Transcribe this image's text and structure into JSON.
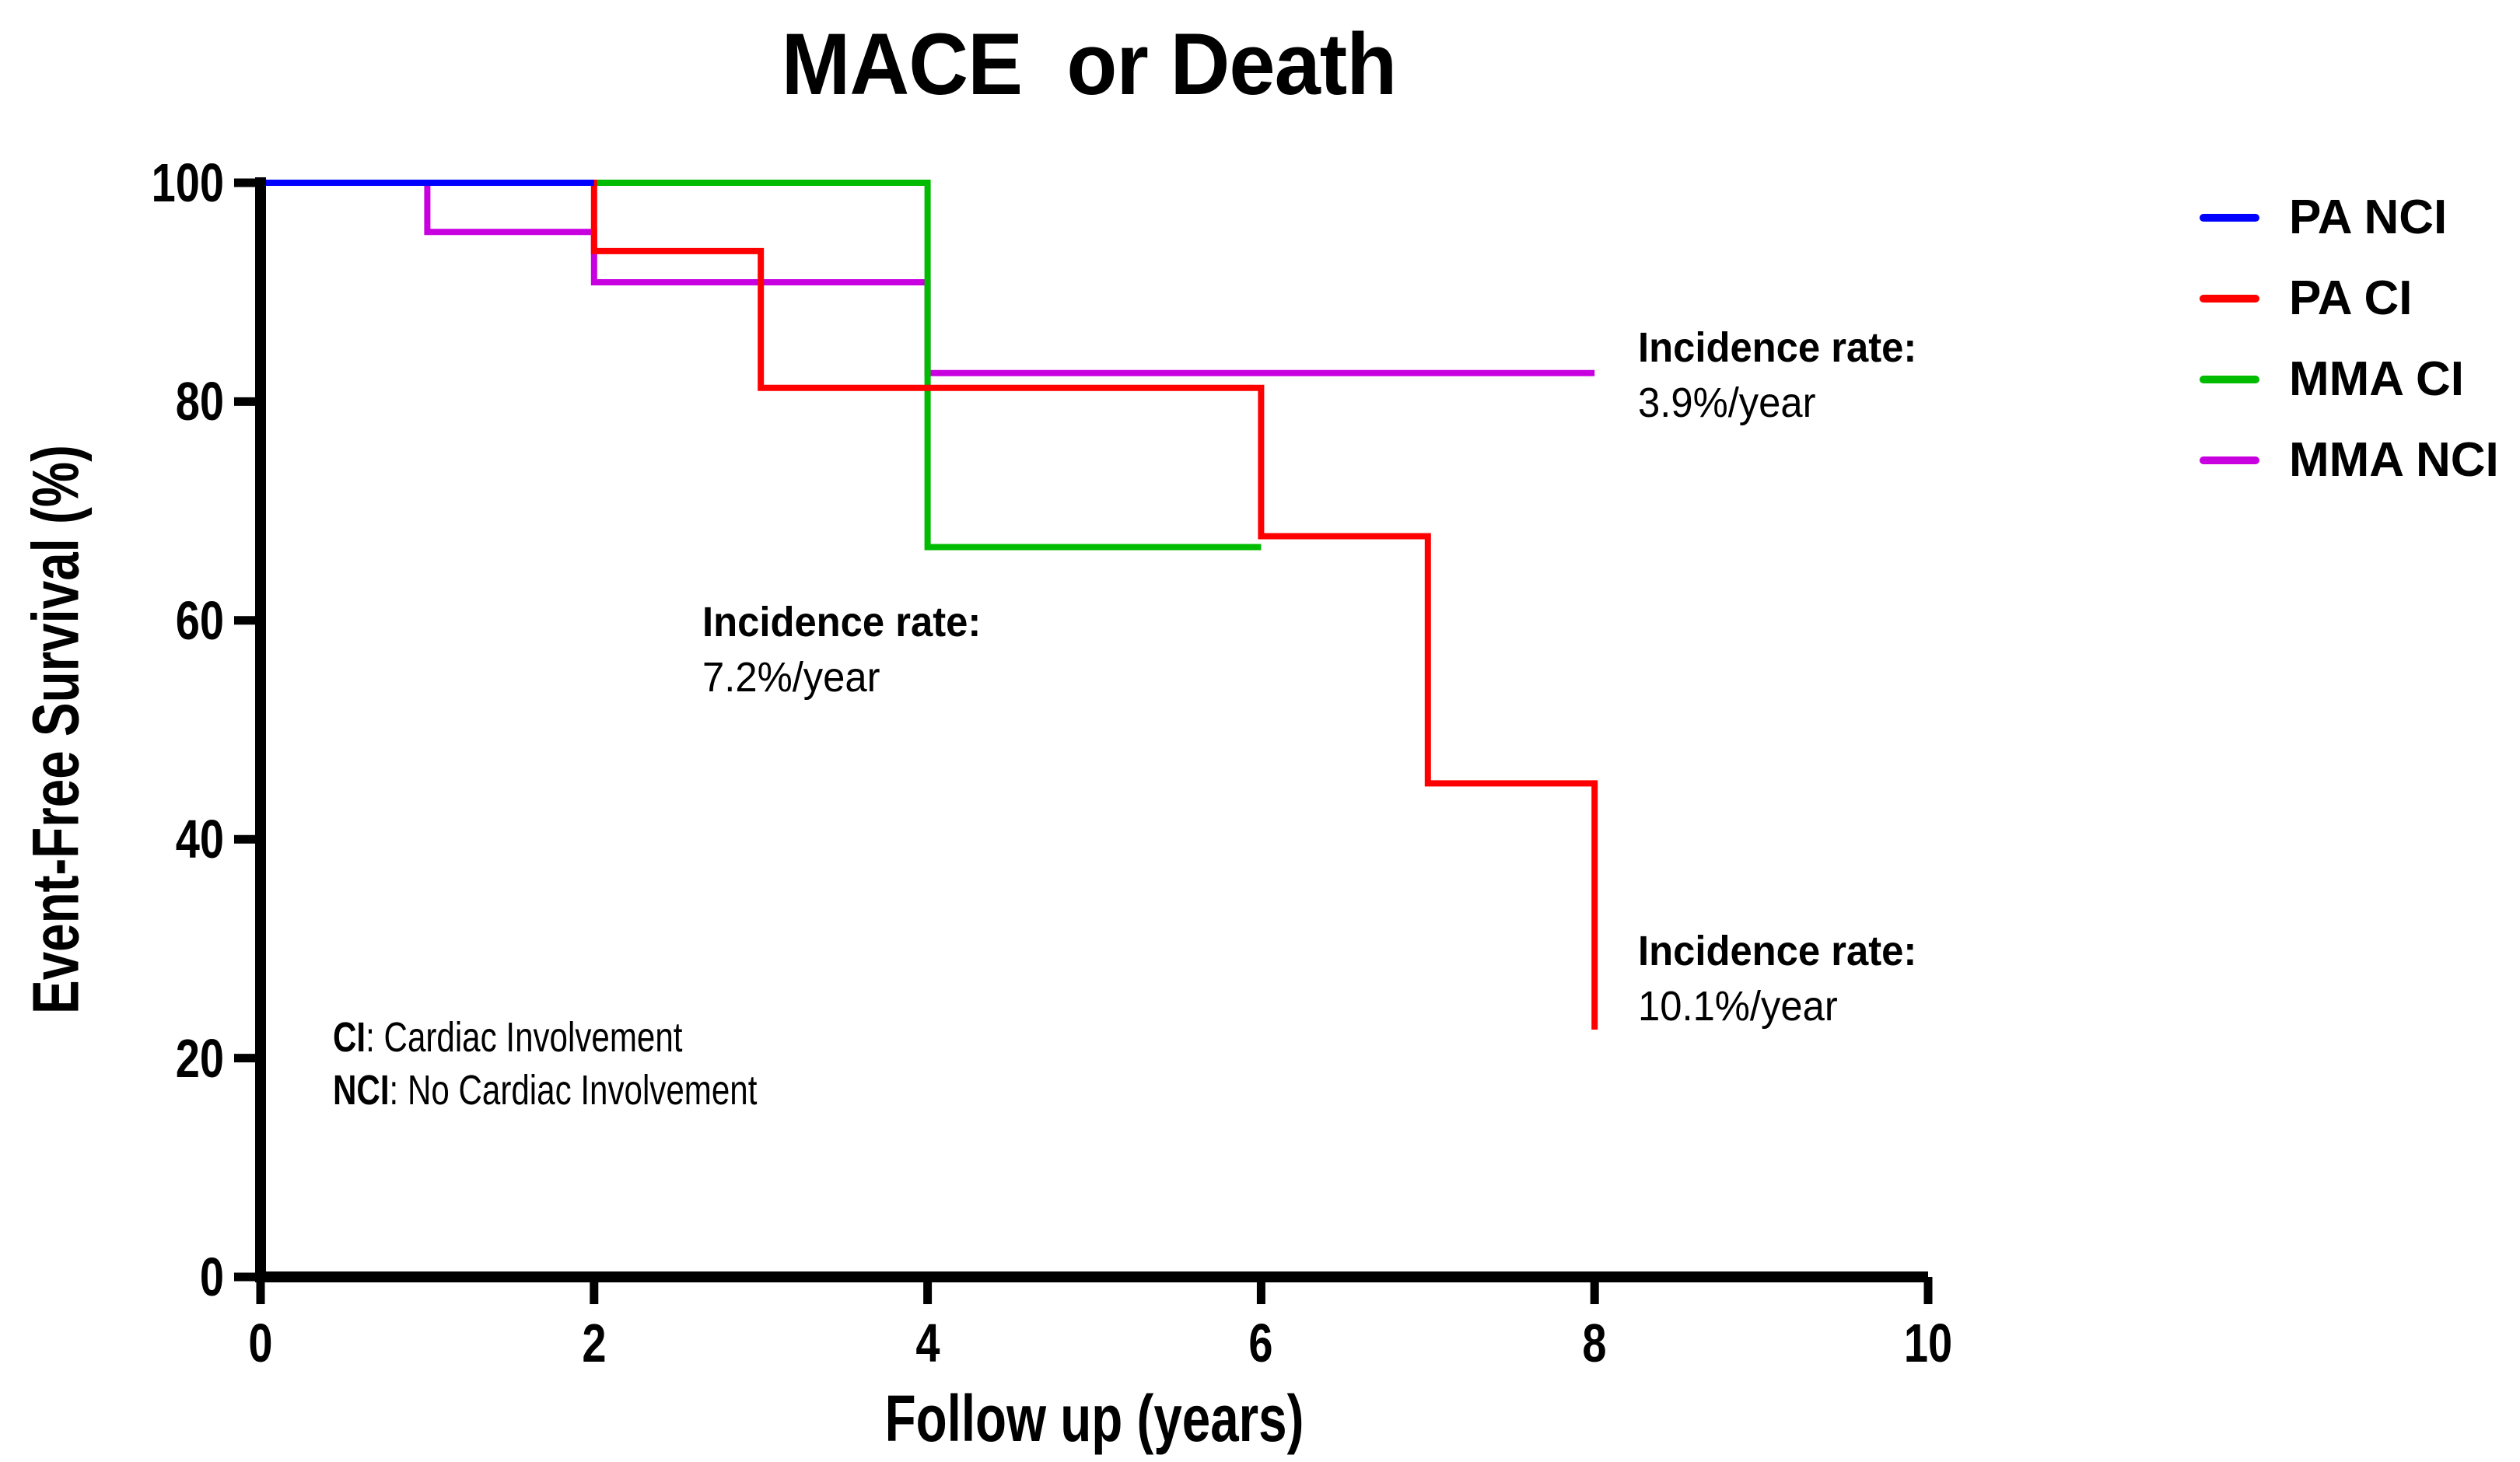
{
  "chart_data": {
    "type": "line",
    "subtype": "kaplan-meier-step",
    "title": "MACE  or Death",
    "xlabel": "Follow up (years)",
    "ylabel": "Event-Free Survival (%)",
    "xlim": [
      0,
      10
    ],
    "ylim": [
      0,
      100
    ],
    "grid": false,
    "legend_position": "right",
    "xtick_labels": [
      "0",
      "2",
      "4",
      "6",
      "8",
      "10"
    ],
    "ytick_labels": [
      "100",
      "80",
      "60",
      "40",
      "20",
      "0"
    ],
    "series": [
      {
        "name": "PA NCI",
        "color": "#0000FF",
        "points": [
          [
            0,
            100
          ],
          [
            2,
            100
          ]
        ]
      },
      {
        "name": "PA CI",
        "color": "#FF0000",
        "points": [
          [
            0,
            100
          ],
          [
            2,
            100
          ],
          [
            2,
            93.75
          ],
          [
            3,
            93.75
          ],
          [
            3,
            81.25
          ],
          [
            6,
            81.25
          ],
          [
            6,
            67.7
          ],
          [
            7,
            67.7
          ],
          [
            7,
            45.1
          ],
          [
            8,
            45.1
          ],
          [
            8,
            22.6
          ]
        ]
      },
      {
        "name": "MMA CI",
        "color": "#00BB00",
        "points": [
          [
            0,
            100
          ],
          [
            4,
            100
          ],
          [
            4,
            66.7
          ],
          [
            6,
            66.7
          ]
        ]
      },
      {
        "name": "MMA NCI",
        "color": "#C800E0",
        "points": [
          [
            0,
            100
          ],
          [
            1,
            100
          ],
          [
            1,
            95.5
          ],
          [
            2,
            95.5
          ],
          [
            2,
            90.9
          ],
          [
            4,
            90.9
          ],
          [
            4,
            82.6
          ],
          [
            8,
            82.6
          ]
        ]
      }
    ],
    "annotations": [
      {
        "label": "Incidence rate:",
        "value": "3.9%/year",
        "attached_to": "MMA NCI"
      },
      {
        "label": "Incidence rate:",
        "value": "7.2%/year",
        "attached_to": "MMA CI"
      },
      {
        "label": "Incidence rate:",
        "value": "10.1%/year",
        "attached_to": "PA CI"
      }
    ],
    "note": {
      "line1_prefix": "CI",
      "line1_text": ": Cardiac Involvement",
      "line2_prefix": "NCI",
      "line2_text": ": No Cardiac Involvement"
    }
  },
  "colors": {
    "axis": "#000000",
    "text": "#000000",
    "background": "#FFFFFF",
    "pa_nci": "#0000FF",
    "pa_ci": "#FF0000",
    "mma_ci": "#00BB00",
    "mma_nci": "#C800E0"
  }
}
